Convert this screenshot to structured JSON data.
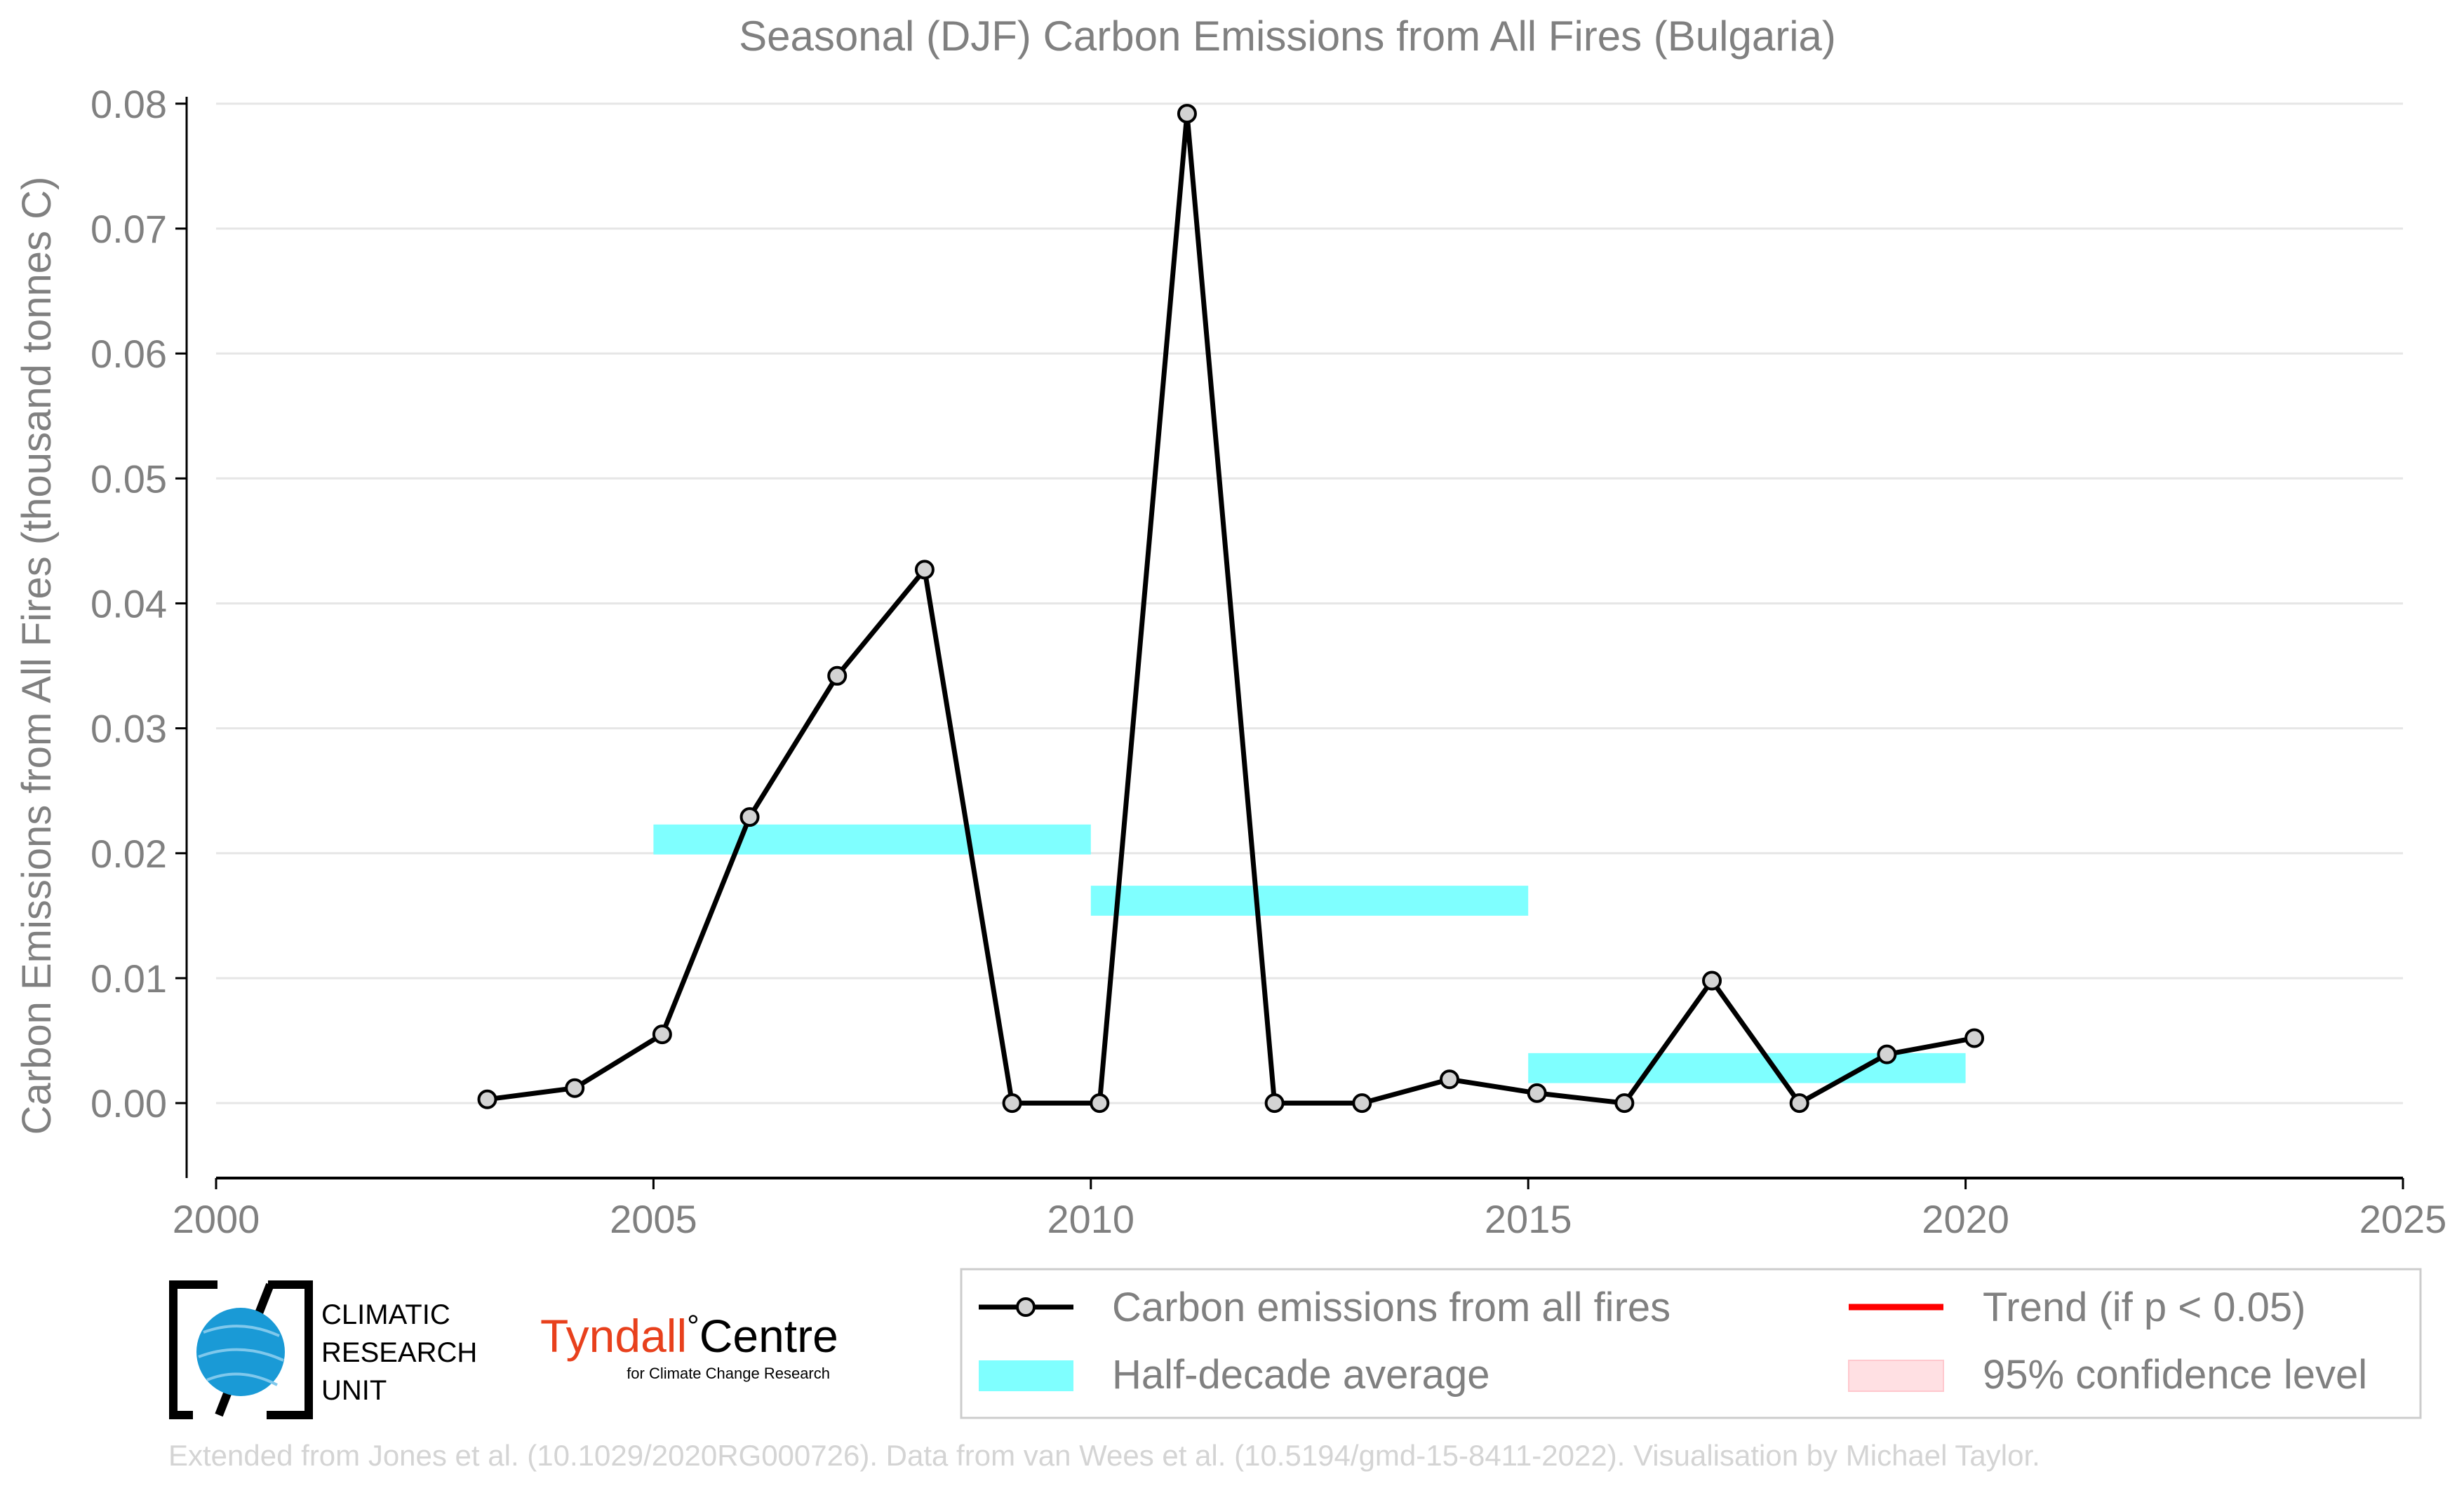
{
  "chart_data": {
    "type": "line",
    "title": "Seasonal (DJF) Carbon Emissions from All Fires (Bulgaria)",
    "xlabel": "",
    "ylabel": "Carbon Emissions from All Fires (thousand tonnes C)",
    "xlim": [
      2000,
      2025
    ],
    "ylim": [
      -0.006,
      0.081
    ],
    "x_ticks": [
      "2000",
      "2005",
      "2010",
      "2015",
      "2020",
      "2025"
    ],
    "y_ticks": [
      "0.00",
      "0.01",
      "0.02",
      "0.03",
      "0.04",
      "0.05",
      "0.06",
      "0.07",
      "0.08"
    ],
    "grid": "horizontal",
    "legend_placement": "bottom-right",
    "series": [
      {
        "name": "Carbon emissions from all fires",
        "color": "#000000",
        "marker_fill": "#d3d3d3",
        "x": [
          2003.1,
          2004.1,
          2005.1,
          2006.1,
          2007.1,
          2008.1,
          2009.1,
          2010.1,
          2011.1,
          2012.1,
          2013.1,
          2014.1,
          2015.1,
          2016.1,
          2017.1,
          2018.1,
          2019.1,
          2020.1
        ],
        "y": [
          0.0003,
          0.0012,
          0.0055,
          0.0229,
          0.0342,
          0.0427,
          0.0,
          0.0,
          0.0792,
          0.0,
          0.0,
          0.0019,
          0.0008,
          0.0,
          0.0098,
          0.0,
          0.0039,
          0.0052
        ]
      }
    ],
    "half_decade_average": {
      "name": "Half-decade average",
      "color": "#7fffff",
      "segments": [
        {
          "x_start": 2005,
          "x_end": 2010,
          "value": 0.0211
        },
        {
          "x_start": 2010,
          "x_end": 2015,
          "value": 0.0162
        },
        {
          "x_start": 2015,
          "x_end": 2020,
          "value": 0.0028
        }
      ]
    },
    "legend": [
      {
        "label": "Carbon emissions from all fires",
        "kind": "line-marker",
        "color": "#000000"
      },
      {
        "label": "Trend (if p < 0.05)",
        "kind": "line",
        "color": "#ff0000"
      },
      {
        "label": "Half-decade average",
        "kind": "patch",
        "color": "#7fffff"
      },
      {
        "label": "95% confidence level",
        "kind": "patch",
        "color": "#ffe0e3"
      }
    ]
  },
  "logos": {
    "cru_lines": [
      "CLIMATIC",
      "RESEARCH",
      "UNIT"
    ],
    "tyndall_name": "Tyndall",
    "tyndall_centre": "Centre",
    "tyndall_degree": "°",
    "tyndall_sub": "for Climate Change Research"
  },
  "footer": {
    "credit": "Extended from Jones et al. (10.1029/2020RG000726). Data from van Wees et al. (10.5194/gmd-15-8411-2022). Visualisation by Michael Taylor."
  }
}
